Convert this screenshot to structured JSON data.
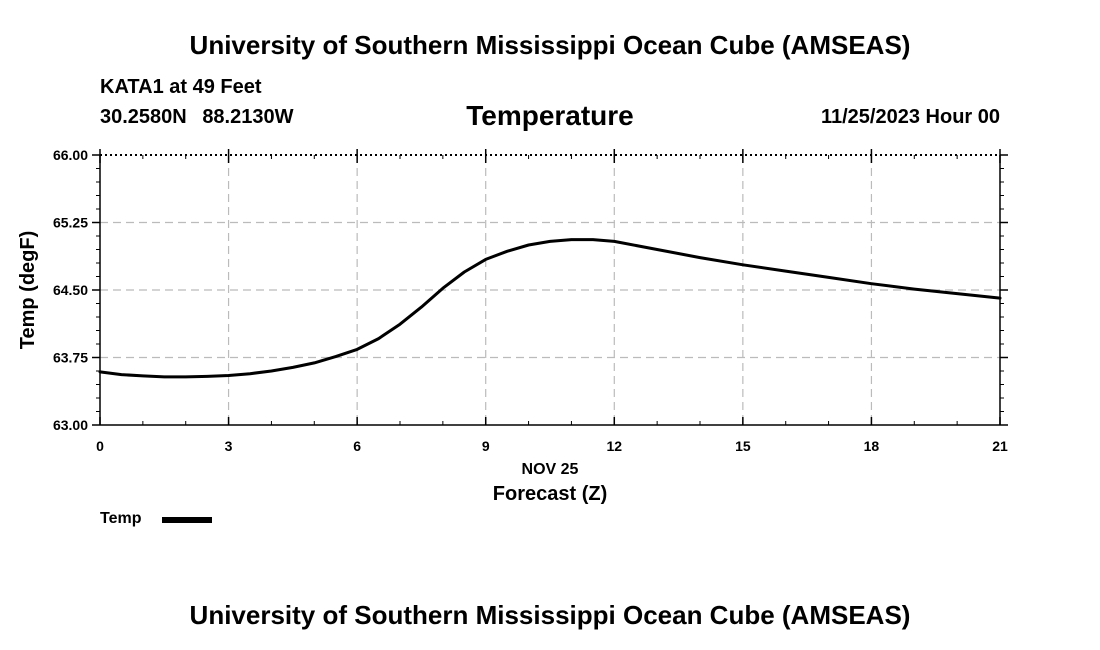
{
  "header": {
    "title": "University of Southern Mississippi Ocean Cube (AMSEAS)",
    "station": "KATA1 at 49 Feet",
    "lat": "30.2580N",
    "lon": "88.2130W",
    "subtitle": "Temperature",
    "datetime": "11/25/2023 Hour 00"
  },
  "footer": {
    "title": "University of Southern Mississippi Ocean Cube (AMSEAS)"
  },
  "legend": {
    "label": "Temp"
  },
  "chart_data": {
    "type": "line",
    "title": "Temperature",
    "xlabel": "Forecast (Z)",
    "xlabel_date": "NOV 25",
    "ylabel": "Temp (degF)",
    "xlim": [
      0,
      21
    ],
    "ylim": [
      63.0,
      66.0
    ],
    "xticks": [
      "0",
      "3",
      "6",
      "9",
      "12",
      "15",
      "18",
      "21"
    ],
    "xtick_values": [
      0,
      3,
      6,
      9,
      12,
      15,
      18,
      21
    ],
    "yticks": [
      "63.00",
      "63.75",
      "64.50",
      "65.25",
      "66.00"
    ],
    "ytick_values": [
      63.0,
      63.75,
      64.5,
      65.25,
      66.0
    ],
    "grid": true,
    "legend_position": "bottom-left",
    "line_color": "#000000",
    "series": [
      {
        "name": "Temp",
        "x": [
          0,
          0.5,
          1,
          1.5,
          2,
          2.5,
          3,
          3.5,
          4,
          4.5,
          5,
          5.5,
          6,
          6.5,
          7,
          7.5,
          8,
          8.5,
          9,
          9.5,
          10,
          10.5,
          11,
          11.5,
          12,
          13,
          14,
          15,
          16,
          17,
          18,
          19,
          20,
          21
        ],
        "values": [
          63.59,
          63.56,
          63.545,
          63.535,
          63.535,
          63.54,
          63.55,
          63.57,
          63.6,
          63.64,
          63.69,
          63.76,
          63.84,
          63.96,
          64.12,
          64.31,
          64.52,
          64.7,
          64.84,
          64.93,
          65.0,
          65.04,
          65.06,
          65.06,
          65.04,
          64.95,
          64.86,
          64.78,
          64.71,
          64.64,
          64.57,
          64.51,
          64.46,
          64.41
        ]
      }
    ]
  }
}
